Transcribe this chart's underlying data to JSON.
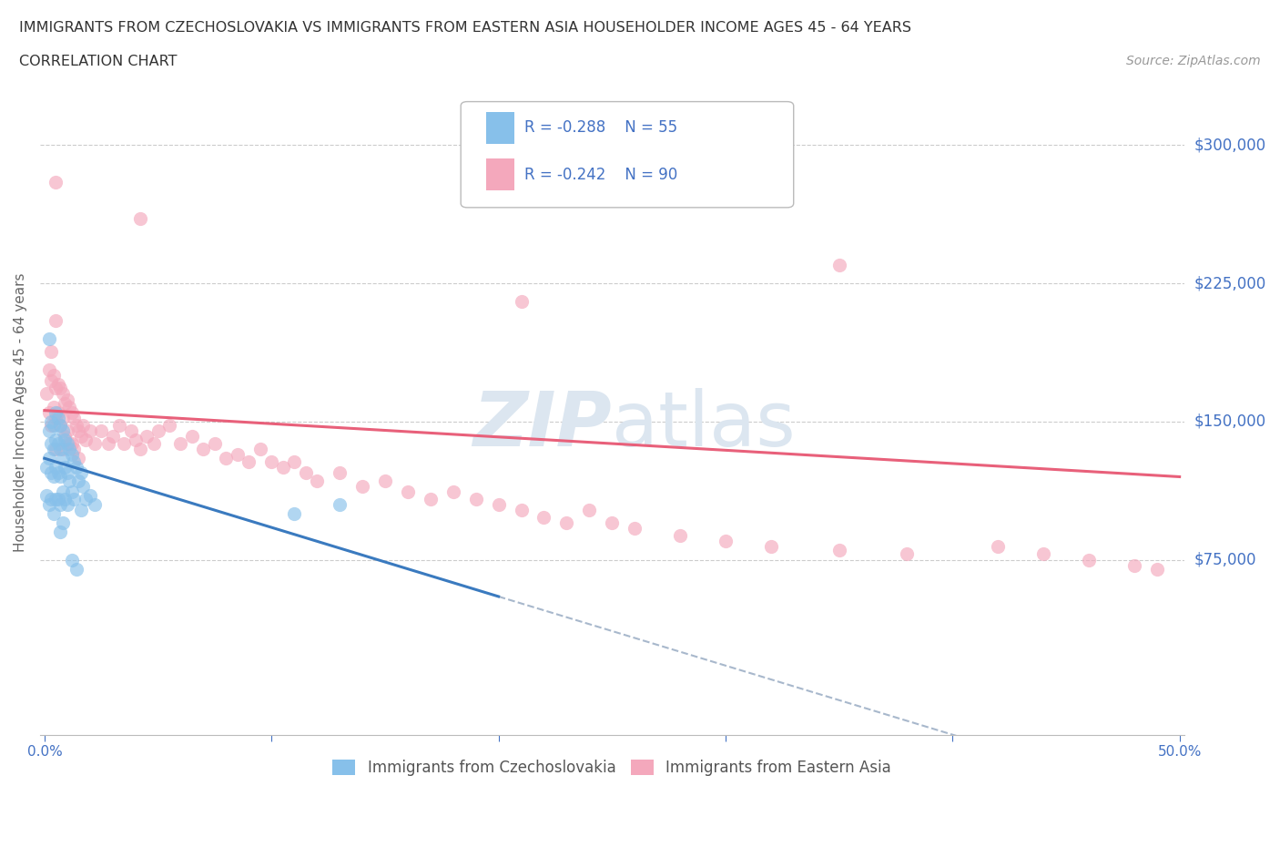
{
  "title_line1": "IMMIGRANTS FROM CZECHOSLOVAKIA VS IMMIGRANTS FROM EASTERN ASIA HOUSEHOLDER INCOME AGES 45 - 64 YEARS",
  "title_line2": "CORRELATION CHART",
  "source_text": "Source: ZipAtlas.com",
  "ylabel": "Householder Income Ages 45 - 64 years",
  "xlim": [
    -0.002,
    0.502
  ],
  "ylim": [
    -20000,
    330000
  ],
  "yticks": [
    75000,
    150000,
    225000,
    300000
  ],
  "ytick_labels": [
    "$75,000",
    "$150,000",
    "$225,000",
    "$300,000"
  ],
  "xticks": [
    0.0,
    0.1,
    0.2,
    0.3,
    0.4,
    0.5
  ],
  "xtick_labels": [
    "0.0%",
    "",
    "",
    "",
    "",
    "50.0%"
  ],
  "color_czech": "#87c0ea",
  "color_eastern": "#f4a8bc",
  "color_trend_czech": "#3a7abf",
  "color_trend_eastern": "#e8607a",
  "color_trend_dashed": "#a8b8cc",
  "watermark_color": "#dce6f0",
  "background_color": "#ffffff",
  "grid_color": "#cccccc",
  "tick_color": "#4472c4",
  "legend_r1": "R = -0.288",
  "legend_n1": "N = 55",
  "legend_r2": "R = -0.242",
  "legend_n2": "N = 90",
  "trend_czech_x0": 0.0,
  "trend_czech_y0": 130000,
  "trend_czech_x1": 0.2,
  "trend_czech_y1": 55000,
  "trend_eastern_x0": 0.0,
  "trend_eastern_y0": 156000,
  "trend_eastern_x1": 0.5,
  "trend_eastern_y1": 120000,
  "czech_x": [
    0.001,
    0.001,
    0.002,
    0.002,
    0.002,
    0.003,
    0.003,
    0.003,
    0.003,
    0.004,
    0.004,
    0.004,
    0.004,
    0.005,
    0.005,
    0.005,
    0.005,
    0.006,
    0.006,
    0.006,
    0.006,
    0.007,
    0.007,
    0.007,
    0.007,
    0.007,
    0.008,
    0.008,
    0.008,
    0.008,
    0.009,
    0.009,
    0.009,
    0.01,
    0.01,
    0.01,
    0.011,
    0.011,
    0.012,
    0.012,
    0.013,
    0.013,
    0.014,
    0.015,
    0.016,
    0.016,
    0.017,
    0.018,
    0.02,
    0.022,
    0.012,
    0.014,
    0.11,
    0.13,
    0.002
  ],
  "czech_y": [
    125000,
    110000,
    145000,
    130000,
    105000,
    150000,
    138000,
    122000,
    108000,
    148000,
    135000,
    120000,
    100000,
    155000,
    140000,
    125000,
    108000,
    152000,
    138000,
    122000,
    108000,
    148000,
    135000,
    120000,
    105000,
    90000,
    145000,
    130000,
    112000,
    95000,
    140000,
    125000,
    108000,
    138000,
    122000,
    105000,
    135000,
    118000,
    132000,
    112000,
    128000,
    108000,
    125000,
    118000,
    122000,
    102000,
    115000,
    108000,
    110000,
    105000,
    75000,
    70000,
    100000,
    105000,
    195000
  ],
  "eastern_x": [
    0.001,
    0.002,
    0.002,
    0.003,
    0.003,
    0.004,
    0.004,
    0.005,
    0.005,
    0.005,
    0.006,
    0.006,
    0.007,
    0.007,
    0.008,
    0.008,
    0.008,
    0.009,
    0.009,
    0.01,
    0.01,
    0.011,
    0.011,
    0.012,
    0.012,
    0.013,
    0.013,
    0.014,
    0.015,
    0.015,
    0.016,
    0.017,
    0.018,
    0.02,
    0.022,
    0.025,
    0.028,
    0.03,
    0.033,
    0.035,
    0.038,
    0.04,
    0.042,
    0.045,
    0.048,
    0.05,
    0.055,
    0.06,
    0.065,
    0.07,
    0.075,
    0.08,
    0.085,
    0.09,
    0.095,
    0.1,
    0.105,
    0.11,
    0.115,
    0.12,
    0.13,
    0.14,
    0.15,
    0.16,
    0.17,
    0.18,
    0.19,
    0.2,
    0.21,
    0.22,
    0.23,
    0.24,
    0.25,
    0.26,
    0.28,
    0.3,
    0.32,
    0.35,
    0.38,
    0.42,
    0.44,
    0.46,
    0.48,
    0.49,
    0.042,
    0.35,
    0.21,
    0.005,
    0.005,
    0.003
  ],
  "eastern_y": [
    165000,
    178000,
    155000,
    172000,
    148000,
    175000,
    158000,
    168000,
    152000,
    135000,
    170000,
    155000,
    168000,
    148000,
    165000,
    152000,
    135000,
    160000,
    142000,
    162000,
    145000,
    158000,
    138000,
    155000,
    138000,
    152000,
    135000,
    148000,
    145000,
    130000,
    142000,
    148000,
    140000,
    145000,
    138000,
    145000,
    138000,
    142000,
    148000,
    138000,
    145000,
    140000,
    135000,
    142000,
    138000,
    145000,
    148000,
    138000,
    142000,
    135000,
    138000,
    130000,
    132000,
    128000,
    135000,
    128000,
    125000,
    128000,
    122000,
    118000,
    122000,
    115000,
    118000,
    112000,
    108000,
    112000,
    108000,
    105000,
    102000,
    98000,
    95000,
    102000,
    95000,
    92000,
    88000,
    85000,
    82000,
    80000,
    78000,
    82000,
    78000,
    75000,
    72000,
    70000,
    260000,
    235000,
    215000,
    280000,
    205000,
    188000
  ]
}
